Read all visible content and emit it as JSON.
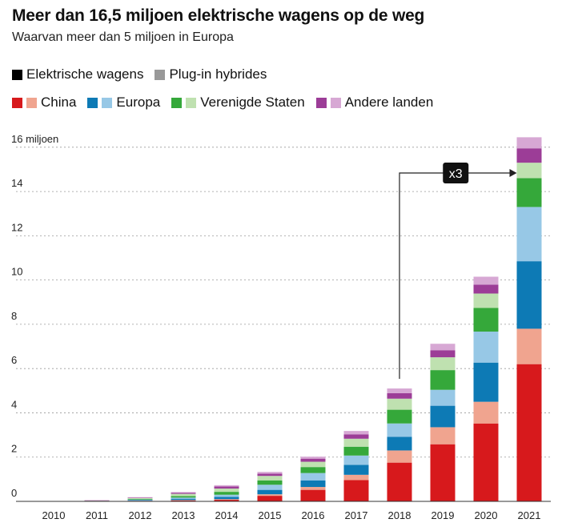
{
  "header": {
    "title": "Meer dan 16,5 miljoen elektrische wagens op de weg",
    "subtitle": "Waarvan meer dan 5 miljoen in Europa"
  },
  "legend": {
    "type_row": [
      {
        "label": "Elektrische wagens",
        "color": "#000000"
      },
      {
        "label": "Plug-in hybrides",
        "color": "#999999"
      }
    ],
    "region_row": [
      {
        "label": "China",
        "colors": [
          "#d7191c",
          "#f0a48f"
        ]
      },
      {
        "label": "Europa",
        "colors": [
          "#0d7ab5",
          "#97c8e6"
        ]
      },
      {
        "label": "Verenigde Staten",
        "colors": [
          "#35a83a",
          "#bfe1b0"
        ]
      },
      {
        "label": "Andere landen",
        "colors": [
          "#9c3d97",
          "#d7a8d4"
        ]
      }
    ]
  },
  "chart_data": {
    "type": "bar",
    "stacked": true,
    "categories": [
      "2010",
      "2011",
      "2012",
      "2013",
      "2014",
      "2015",
      "2016",
      "2017",
      "2018",
      "2019",
      "2020",
      "2021"
    ],
    "y_unit_label": "miljoen",
    "ylim": [
      0,
      16.5
    ],
    "yticks": [
      0,
      2,
      4,
      6,
      8,
      10,
      12,
      14,
      16
    ],
    "ytick_labels": [
      "0",
      "2",
      "4",
      "6",
      "8",
      "10",
      "12",
      "14",
      "16 miljoen"
    ],
    "grid": "horizontal dotted",
    "series": [
      {
        "name": "China",
        "type": "Elektrische wagens",
        "color": "#d7191c",
        "values": [
          0.0,
          0.01,
          0.02,
          0.04,
          0.07,
          0.25,
          0.52,
          0.96,
          1.75,
          2.58,
          3.52,
          6.2
        ]
      },
      {
        "name": "China",
        "type": "Plug-in hybrides",
        "color": "#f0a48f",
        "values": [
          0.0,
          0.0,
          0.01,
          0.02,
          0.03,
          0.07,
          0.13,
          0.24,
          0.55,
          0.77,
          0.98,
          1.6
        ]
      },
      {
        "name": "Europa",
        "type": "Elektrische wagens",
        "color": "#0d7ab5",
        "values": [
          0.0,
          0.01,
          0.03,
          0.06,
          0.1,
          0.2,
          0.3,
          0.45,
          0.62,
          0.97,
          1.77,
          3.05
        ]
      },
      {
        "name": "Europa",
        "type": "Plug-in hybrides",
        "color": "#97c8e6",
        "values": [
          0.0,
          0.0,
          0.02,
          0.05,
          0.1,
          0.23,
          0.33,
          0.42,
          0.6,
          0.72,
          1.4,
          2.45
        ]
      },
      {
        "name": "Verenigde Staten",
        "type": "Elektrische wagens",
        "color": "#35a83a",
        "values": [
          0.0,
          0.01,
          0.03,
          0.07,
          0.13,
          0.2,
          0.27,
          0.4,
          0.62,
          0.89,
          1.07,
          1.3
        ]
      },
      {
        "name": "Verenigde Staten",
        "type": "Plug-in hybrides",
        "color": "#bfe1b0",
        "values": [
          0.0,
          0.01,
          0.04,
          0.1,
          0.15,
          0.2,
          0.24,
          0.36,
          0.5,
          0.58,
          0.65,
          0.7
        ]
      },
      {
        "name": "Andere landen",
        "type": "Elektrische wagens",
        "color": "#9c3d97",
        "values": [
          0.0,
          0.01,
          0.02,
          0.05,
          0.09,
          0.1,
          0.14,
          0.2,
          0.25,
          0.32,
          0.4,
          0.65
        ]
      },
      {
        "name": "Andere landen",
        "type": "Plug-in hybrides",
        "color": "#d7a8d4",
        "values": [
          0.01,
          0.01,
          0.02,
          0.03,
          0.06,
          0.08,
          0.09,
          0.15,
          0.21,
          0.29,
          0.36,
          0.5
        ]
      }
    ],
    "annotation": {
      "text": "x3",
      "from": "2018",
      "to": "2021"
    }
  }
}
